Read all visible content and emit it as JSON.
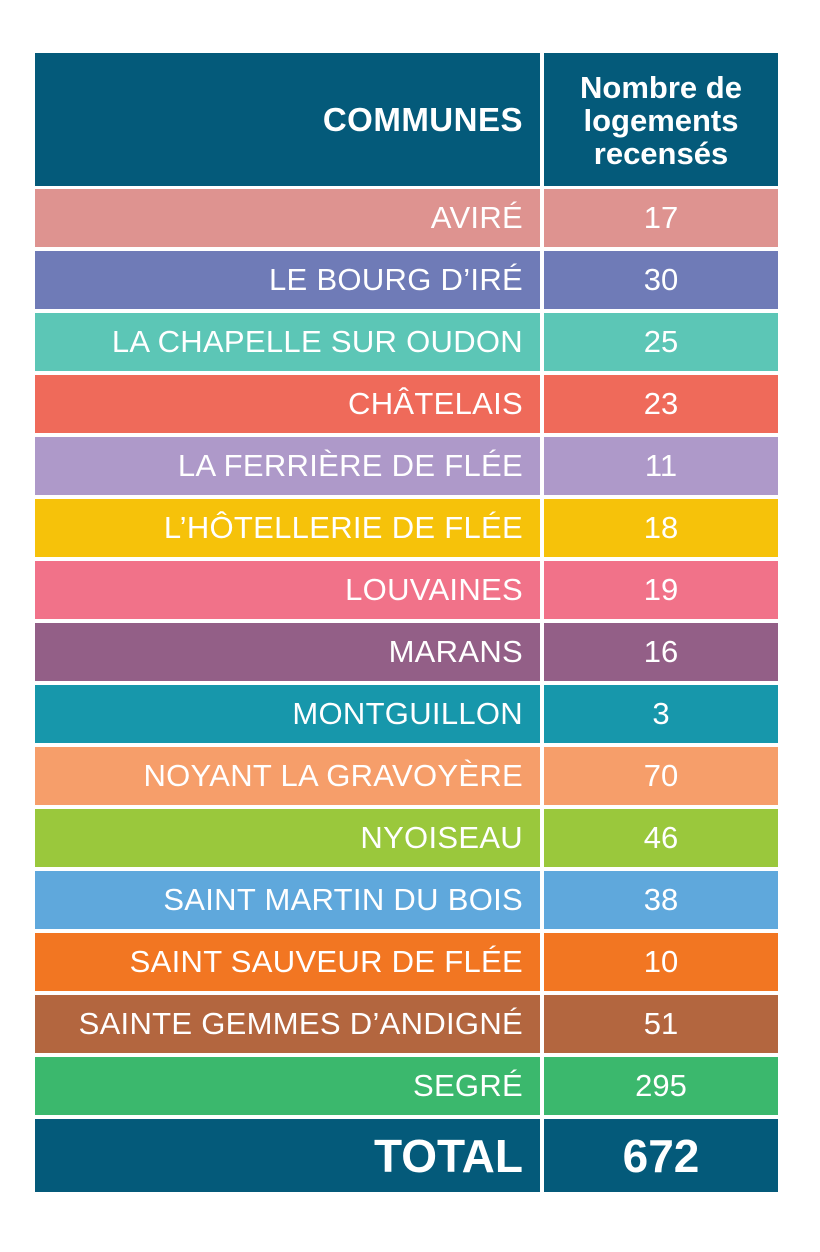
{
  "table": {
    "header": {
      "col1": "COMMUNES",
      "col2_line1": "Nombre de",
      "col2_line2": "logements",
      "col2_line3": "recensés"
    },
    "rows": [
      {
        "commune": "AVIRÉ",
        "value": "17",
        "color": "#de9390"
      },
      {
        "commune": "LE BOURG D’IRÉ",
        "value": "30",
        "color": "#6f7bb7"
      },
      {
        "commune": "LA CHAPELLE SUR OUDON",
        "value": "25",
        "color": "#5cc6b6"
      },
      {
        "commune": "CHÂTELAIS",
        "value": "23",
        "color": "#ef6a5a"
      },
      {
        "commune": "LA FERRIÈRE DE FLÉE",
        "value": "11",
        "color": "#ae99c9"
      },
      {
        "commune": "L’HÔTELLERIE DE FLÉE",
        "value": "18",
        "color": "#f6c20a"
      },
      {
        "commune": "LOUVAINES",
        "value": "19",
        "color": "#f17289"
      },
      {
        "commune": "MARANS",
        "value": "16",
        "color": "#935f87"
      },
      {
        "commune": "MONTGUILLON",
        "value": "3",
        "color": "#1797ab"
      },
      {
        "commune": "NOYANT LA GRAVOYÈRE",
        "value": "70",
        "color": "#f69e6a"
      },
      {
        "commune": "NYOISEAU",
        "value": "46",
        "color": "#9ac83c"
      },
      {
        "commune": "SAINT MARTIN DU BOIS",
        "value": "38",
        "color": "#5fa8dc"
      },
      {
        "commune": "SAINT SAUVEUR DE FLÉE",
        "value": "10",
        "color": "#f27622"
      },
      {
        "commune": "SAINTE GEMMES D’ANDIGNÉ",
        "value": "51",
        "color": "#b3663f"
      },
      {
        "commune": "SEGRÉ",
        "value": "295",
        "color": "#3bb86d"
      }
    ],
    "total": {
      "label": "TOTAL",
      "value": "672"
    }
  }
}
